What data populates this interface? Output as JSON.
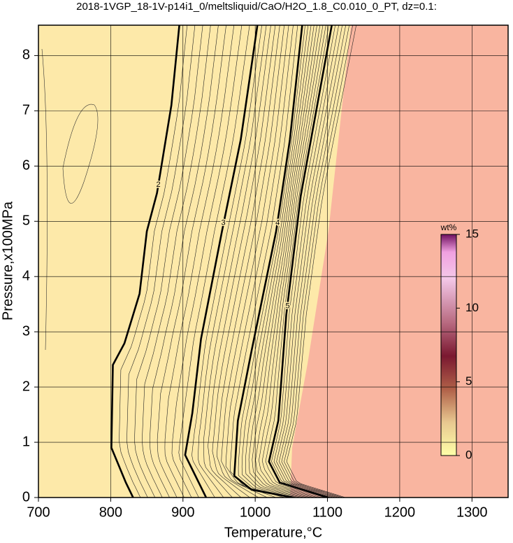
{
  "chart_data": {
    "type": "contour",
    "title": "2018-1VGP_18-1V-p14i1_0/meltsliquid/CaO/H2O_1.8_C0.010_0_PT, dz=0.1:",
    "x_label": "Temperature,°C",
    "y_label": "Pressure,x100MPa",
    "xlim": [
      700,
      1350
    ],
    "xticks": [
      700,
      800,
      900,
      1000,
      1100,
      1200,
      1300
    ],
    "ylim": [
      0,
      8.55
    ],
    "yticks": [
      0,
      1,
      2,
      3,
      4,
      5,
      6,
      7,
      8
    ],
    "grid": true,
    "contours": [
      {
        "level": 2,
        "color": "#000000",
        "x": [
          895,
          884,
          864,
          850,
          840,
          819,
          803,
          801,
          821,
          831
        ],
        "y": [
          8.55,
          7.1,
          5.51,
          4.82,
          3.69,
          2.79,
          2.4,
          0.9,
          0.27,
          0
        ]
      },
      {
        "level": 3,
        "color": "#000000",
        "x": [
          1003,
          980,
          954,
          925,
          913,
          903,
          932
        ],
        "y": [
          8.55,
          6.48,
          4.82,
          2.87,
          1.53,
          0.77,
          0
        ]
      },
      {
        "level": 4,
        "color": "#000000",
        "x": [
          1065,
          1048,
          1029,
          995,
          976,
          971,
          995,
          1053
        ],
        "y": [
          8.55,
          6.48,
          4.82,
          2.66,
          1.39,
          0.39,
          0.14,
          0
        ]
      },
      {
        "level": 5,
        "color": "#000000",
        "x": [
          1106,
          1063,
          1043,
          1032,
          1019,
          1034,
          1101
        ],
        "y": [
          8.55,
          5.46,
          3.31,
          1.39,
          0.65,
          0.27,
          0
        ]
      }
    ],
    "colorbar": {
      "label": "wt%",
      "lim": [
        0,
        15
      ],
      "ticks": [
        0,
        5,
        10,
        15
      ]
    }
  }
}
